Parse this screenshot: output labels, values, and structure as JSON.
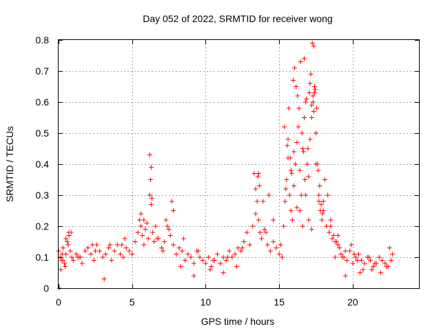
{
  "chart_data": {
    "type": "scatter",
    "title": "Day 052 of 2022, SRMTID for receiver wong",
    "xlabel": "GPS time / hours",
    "ylabel": "SRMTID / TECUs",
    "xlim": [
      0,
      24.5
    ],
    "ylim": [
      0,
      0.8
    ],
    "xticks": [
      0,
      5,
      10,
      15,
      20
    ],
    "yticks": [
      0,
      0.1,
      0.2,
      0.3,
      0.4,
      0.5,
      0.6,
      0.7,
      0.8
    ],
    "grid": true,
    "marker": "+",
    "color": "#ff0000",
    "series": [
      {
        "name": "SRMTID",
        "x": [
          0.0,
          0.1,
          0.2,
          0.3,
          0.4,
          0.5,
          0.6,
          0.7,
          0.8,
          0.9,
          1.0,
          1.2,
          1.4,
          1.6,
          1.8,
          2.0,
          2.2,
          2.4,
          2.6,
          2.8,
          3.0,
          3.2,
          3.4,
          3.6,
          3.8,
          4.0,
          4.2,
          4.4,
          4.6,
          4.8,
          5.0,
          5.2,
          5.4,
          5.5,
          5.6,
          5.7,
          5.8,
          5.9,
          6.0,
          6.1,
          6.2,
          6.3,
          6.4,
          6.5,
          6.6,
          6.8,
          7.0,
          7.2,
          7.4,
          7.6,
          7.8,
          8.0,
          8.2,
          8.4,
          8.6,
          8.8,
          9.0,
          9.2,
          9.4,
          9.6,
          9.8,
          10.0,
          10.2,
          10.4,
          10.6,
          10.8,
          11.0,
          11.2,
          11.4,
          11.6,
          11.8,
          12.0,
          12.2,
          12.4,
          12.6,
          12.8,
          13.0,
          13.2,
          13.4,
          13.5,
          13.6,
          13.7,
          13.8,
          14.0,
          14.2,
          14.4,
          14.6,
          14.8,
          15.0,
          15.2,
          15.3,
          15.4,
          15.5,
          15.6,
          15.7,
          15.8,
          15.9,
          16.0,
          16.1,
          16.2,
          16.3,
          16.4,
          16.5,
          16.6,
          16.7,
          16.8,
          16.9,
          17.0,
          17.1,
          17.2,
          17.3,
          17.4,
          17.5,
          17.6,
          17.7,
          17.8,
          17.9,
          18.0,
          18.2,
          18.4,
          18.6,
          18.8,
          19.0,
          19.2,
          19.4,
          19.6,
          19.8,
          20.0,
          20.2,
          20.4,
          20.6,
          20.8,
          21.0,
          21.2,
          21.4,
          21.6,
          21.8,
          22.0,
          22.2,
          22.4,
          22.6,
          0.05,
          0.3,
          0.5,
          0.7,
          1.5,
          2.5,
          3.5,
          4.5,
          5.6,
          5.8,
          6.2,
          6.3,
          6.25,
          6.35,
          7.3,
          7.5,
          7.7,
          7.8,
          8.5,
          9.5,
          10.5,
          11.5,
          12.5,
          13.3,
          13.6,
          13.9,
          14.3,
          14.6,
          15.1,
          15.35,
          15.45,
          15.55,
          15.65,
          15.75,
          15.85,
          15.95,
          16.05,
          16.15,
          16.25,
          16.35,
          16.45,
          16.55,
          16.65,
          16.75,
          16.85,
          16.95,
          17.05,
          17.15,
          17.25,
          17.35,
          17.45,
          17.55,
          17.65,
          17.75,
          17.85,
          17.95,
          18.1,
          18.3,
          18.5,
          18.7,
          18.9,
          19.1,
          19.3,
          19.5,
          19.9,
          20.1,
          20.3,
          20.7,
          21.1,
          21.5,
          21.9,
          22.3,
          22.7,
          16.2,
          16.4,
          16.6,
          16.8,
          17.0,
          17.2,
          17.4,
          17.3,
          17.35,
          17.2,
          15.6,
          15.8,
          16.0,
          14.1,
          13.4,
          13.55,
          13.65,
          16.7,
          17.1,
          17.5,
          17.7,
          18.0,
          18.5,
          19.0,
          10.3,
          11.2,
          12.1,
          9.2,
          8.3,
          7.1,
          6.7,
          4.3,
          3.1,
          2.3,
          1.3,
          0.15,
          0.25,
          0.45,
          0.65,
          0.85,
          22.5,
          21.3,
          20.5,
          19.5,
          18.8
        ],
        "y": [
          0.12,
          0.1,
          0.09,
          0.13,
          0.08,
          0.11,
          0.15,
          0.17,
          0.12,
          0.1,
          0.09,
          0.11,
          0.1,
          0.08,
          0.12,
          0.13,
          0.11,
          0.09,
          0.14,
          0.12,
          0.1,
          0.11,
          0.13,
          0.09,
          0.12,
          0.14,
          0.11,
          0.1,
          0.13,
          0.12,
          0.11,
          0.15,
          0.18,
          0.22,
          0.2,
          0.17,
          0.14,
          0.19,
          0.21,
          0.16,
          0.3,
          0.27,
          0.18,
          0.15,
          0.2,
          0.16,
          0.13,
          0.15,
          0.2,
          0.17,
          0.14,
          0.11,
          0.13,
          0.12,
          0.09,
          0.11,
          0.1,
          0.08,
          0.12,
          0.1,
          0.09,
          0.08,
          0.1,
          0.07,
          0.09,
          0.11,
          0.08,
          0.1,
          0.09,
          0.12,
          0.1,
          0.11,
          0.13,
          0.12,
          0.15,
          0.18,
          0.14,
          0.2,
          0.24,
          0.28,
          0.22,
          0.18,
          0.16,
          0.19,
          0.14,
          0.12,
          0.15,
          0.13,
          0.11,
          0.1,
          0.2,
          0.28,
          0.35,
          0.42,
          0.3,
          0.25,
          0.22,
          0.33,
          0.4,
          0.47,
          0.52,
          0.38,
          0.3,
          0.45,
          0.55,
          0.6,
          0.4,
          0.36,
          0.48,
          0.55,
          0.62,
          0.65,
          0.5,
          0.4,
          0.3,
          0.25,
          0.22,
          0.28,
          0.2,
          0.18,
          0.16,
          0.15,
          0.14,
          0.11,
          0.1,
          0.09,
          0.12,
          0.08,
          0.1,
          0.11,
          0.09,
          0.08,
          0.1,
          0.09,
          0.07,
          0.08,
          0.1,
          0.09,
          0.08,
          0.07,
          0.09,
          0.0,
          0.09,
          0.16,
          0.18,
          0.1,
          0.12,
          0.14,
          0.16,
          0.24,
          0.22,
          0.43,
          0.39,
          0.35,
          0.29,
          0.22,
          0.19,
          0.28,
          0.25,
          0.16,
          0.12,
          0.09,
          0.1,
          0.13,
          0.37,
          0.37,
          0.28,
          0.3,
          0.22,
          0.14,
          0.52,
          0.32,
          0.46,
          0.58,
          0.42,
          0.37,
          0.67,
          0.71,
          0.65,
          0.62,
          0.58,
          0.73,
          0.5,
          0.44,
          0.35,
          0.61,
          0.45,
          0.63,
          0.69,
          0.79,
          0.78,
          0.64,
          0.58,
          0.38,
          0.33,
          0.27,
          0.24,
          0.35,
          0.3,
          0.2,
          0.17,
          0.15,
          0.13,
          0.1,
          0.12,
          0.14,
          0.11,
          0.09,
          0.06,
          0.1,
          0.08,
          0.05,
          0.07,
          0.11,
          0.26,
          0.25,
          0.2,
          0.3,
          0.22,
          0.19,
          0.63,
          0.6,
          0.57,
          0.59,
          0.48,
          0.38,
          0.44,
          0.18,
          0.32,
          0.36,
          0.33,
          0.74,
          0.66,
          0.4,
          0.28,
          0.25,
          0.22,
          0.17,
          0.06,
          0.05,
          0.07,
          0.04,
          0.07,
          0.12,
          0.16,
          0.14,
          0.03,
          0.14,
          0.1,
          0.06,
          0.11,
          0.07,
          0.14,
          0.18,
          0.13,
          0.06,
          0.05,
          0.04,
          0.1
        ]
      }
    ]
  }
}
